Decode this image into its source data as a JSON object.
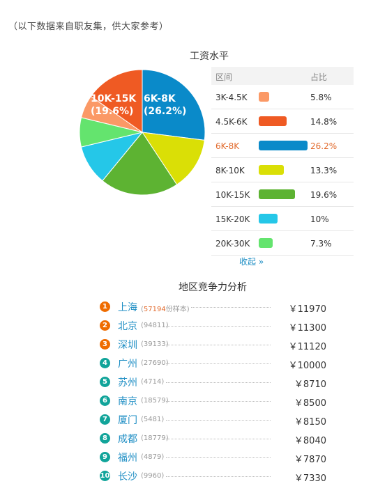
{
  "note": "（以下数据来自职友集，供大家参考）",
  "salary": {
    "title": "工资水平",
    "header": {
      "range": "区间",
      "pct": "占比"
    },
    "collapse_label": "收起 »",
    "highlight_index": 2,
    "rows": [
      {
        "range": "3K-4.5K",
        "pct": "5.8%",
        "color": "#fb9966"
      },
      {
        "range": "4.5K-6K",
        "pct": "14.8%",
        "color": "#ef5a23"
      },
      {
        "range": "6K-8K",
        "pct": "26.2%",
        "color": "#0a8ac9"
      },
      {
        "range": "8K-10K",
        "pct": "13.3%",
        "color": "#dadf06"
      },
      {
        "range": "10K-15K",
        "pct": "19.6%",
        "color": "#5db332"
      },
      {
        "range": "15K-20K",
        "pct": "10%",
        "color": "#25c7e8"
      },
      {
        "range": "20K-30K",
        "pct": "7.3%",
        "color": "#64e46e"
      }
    ]
  },
  "chart_data": {
    "type": "pie",
    "title": "工资水平",
    "categories": [
      "3K-4.5K",
      "4.5K-6K",
      "6K-8K",
      "8K-10K",
      "10K-15K",
      "15K-20K",
      "20K-30K"
    ],
    "values": [
      5.8,
      14.8,
      26.2,
      13.3,
      19.6,
      10,
      7.3
    ],
    "labeled": [
      {
        "label": "6K-8K",
        "value": "(26.2%)"
      },
      {
        "label": "10K-15K",
        "value": "(19.6%)"
      }
    ]
  },
  "region": {
    "title": "地区竞争力分析",
    "sample_suffix": "份样本",
    "badge_colors": [
      "#ef6c00",
      "#ef6c00",
      "#ef6c00",
      "#11a49a",
      "#11a49a",
      "#11a49a",
      "#11a49a",
      "#11a49a",
      "#11a49a",
      "#11a49a"
    ],
    "rows": [
      {
        "rank": "1",
        "city": "上海",
        "count": "57194",
        "salary": "￥11970"
      },
      {
        "rank": "2",
        "city": "北京",
        "count": "94811",
        "salary": "￥11300"
      },
      {
        "rank": "3",
        "city": "深圳",
        "count": "39133",
        "salary": "￥11120"
      },
      {
        "rank": "4",
        "city": "广州",
        "count": "27690",
        "salary": "￥10000"
      },
      {
        "rank": "5",
        "city": "苏州",
        "count": "4714",
        "salary": "￥8710"
      },
      {
        "rank": "6",
        "city": "南京",
        "count": "18579",
        "salary": "￥8500"
      },
      {
        "rank": "7",
        "city": "厦门",
        "count": "5481",
        "salary": "￥8150"
      },
      {
        "rank": "8",
        "city": "成都",
        "count": "18779",
        "salary": "￥8040"
      },
      {
        "rank": "9",
        "city": "福州",
        "count": "4879",
        "salary": "￥7870"
      },
      {
        "rank": "10",
        "city": "长沙",
        "count": "9960",
        "salary": "￥7330"
      }
    ]
  }
}
